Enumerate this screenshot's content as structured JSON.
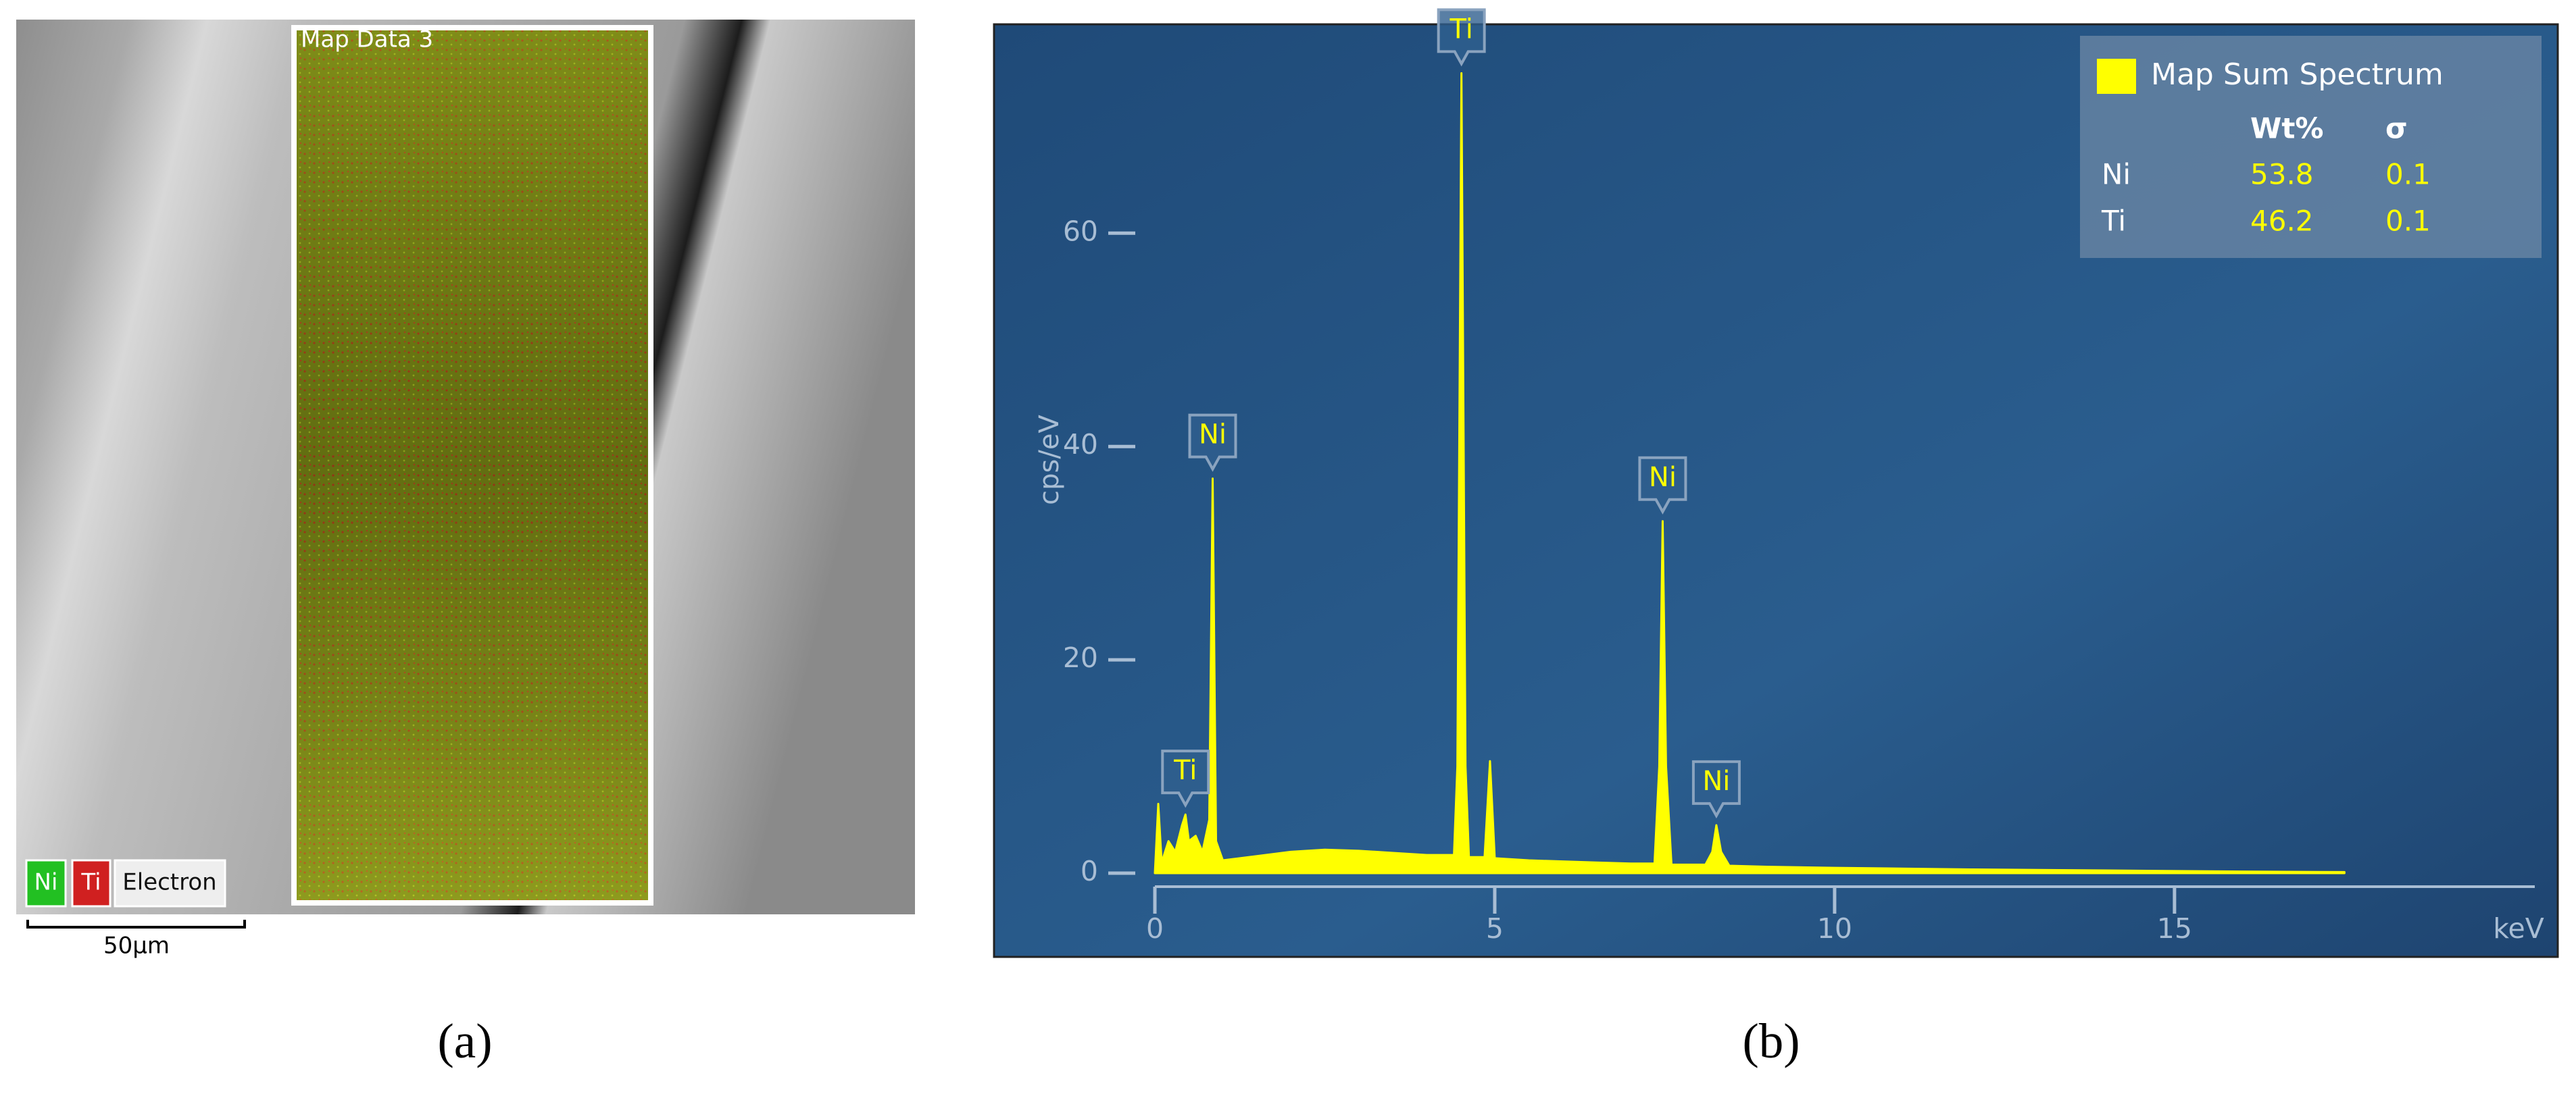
{
  "panel_a": {
    "map_title": "Map Data 3",
    "legend": [
      "Ni",
      "Ti",
      "Electron"
    ],
    "scale_bar": "50µm"
  },
  "captions": [
    "(a)",
    "(b)"
  ],
  "chart_data": {
    "type": "area",
    "x_label": "keV",
    "y_label": "cps/eV",
    "x": [
      0,
      0.05,
      0.1,
      0.2,
      0.3,
      0.4,
      0.45,
      0.5,
      0.6,
      0.7,
      0.8,
      0.85,
      0.9,
      1.0,
      1.5,
      2.0,
      2.5,
      3.0,
      3.5,
      4.0,
      4.4,
      4.45,
      4.51,
      4.57,
      4.62,
      4.85,
      4.93,
      5.0,
      5.5,
      6.0,
      6.5,
      7.0,
      7.35,
      7.42,
      7.47,
      7.52,
      7.6,
      8.1,
      8.2,
      8.26,
      8.33,
      8.45,
      9,
      10,
      12,
      14,
      16,
      17.5
    ],
    "series": [
      {
        "name": "Map Sum Spectrum",
        "color": "#ffff00",
        "values": [
          0,
          6.5,
          1,
          3,
          2,
          4.5,
          5.5,
          3,
          3.5,
          2,
          5,
          37,
          3,
          1.2,
          1.6,
          2.0,
          2.2,
          2.1,
          1.9,
          1.7,
          1.7,
          10,
          75,
          10,
          1.5,
          1.5,
          10.5,
          1.4,
          1.2,
          1.1,
          1.0,
          0.9,
          0.9,
          10,
          33,
          10,
          0.8,
          0.8,
          2,
          4.5,
          2,
          0.7,
          0.6,
          0.5,
          0.35,
          0.25,
          0.15,
          0.1
        ]
      }
    ],
    "annotations": [
      {
        "label": "Ti",
        "x": 0.45,
        "y": 5.5
      },
      {
        "label": "Ni",
        "x": 0.85,
        "y": 37
      },
      {
        "label": "Ti",
        "x": 4.51,
        "y": 75
      },
      {
        "label": "Ni",
        "x": 7.47,
        "y": 33
      },
      {
        "label": "Ni",
        "x": 8.26,
        "y": 4.5
      }
    ],
    "xlim": [
      0,
      20.3
    ],
    "xticks": [
      0,
      5,
      10,
      15
    ],
    "ylim": [
      0,
      78
    ],
    "yticks": [
      0,
      20,
      40,
      60
    ],
    "table": {
      "headers": [
        "Wt%",
        "σ"
      ],
      "rows": [
        [
          "Ni",
          53.8,
          0.1
        ],
        [
          "Ti",
          46.2,
          0.1
        ]
      ]
    }
  }
}
